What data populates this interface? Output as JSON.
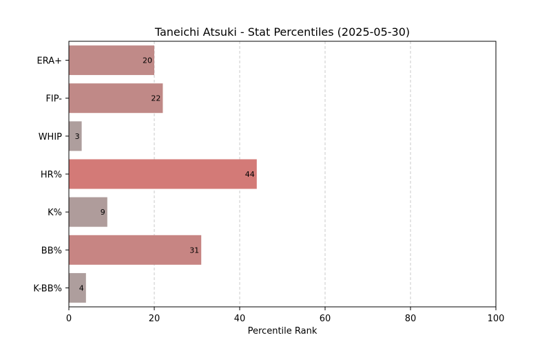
{
  "chart_data": {
    "type": "bar",
    "orientation": "horizontal",
    "title": "Taneichi Atsuki - Stat Percentiles (2025-05-30)",
    "xlabel": "Percentile Rank",
    "ylabel": "",
    "xlim": [
      0,
      100
    ],
    "xticks": [
      "0",
      "20",
      "40",
      "60",
      "80",
      "100"
    ],
    "grid": "x-dashed",
    "categories": [
      "ERA+",
      "FIP-",
      "WHIP",
      "HR%",
      "K%",
      "BB%",
      "K-BB%"
    ],
    "values": [
      20,
      22,
      3,
      44,
      9,
      31,
      4
    ],
    "bar_colors": [
      "#c08a88",
      "#c08987",
      "#ae9e9d",
      "#d37a77",
      "#af9c9b",
      "#c78583",
      "#ae9e9d"
    ],
    "grid_color": "#c8c8c8"
  }
}
